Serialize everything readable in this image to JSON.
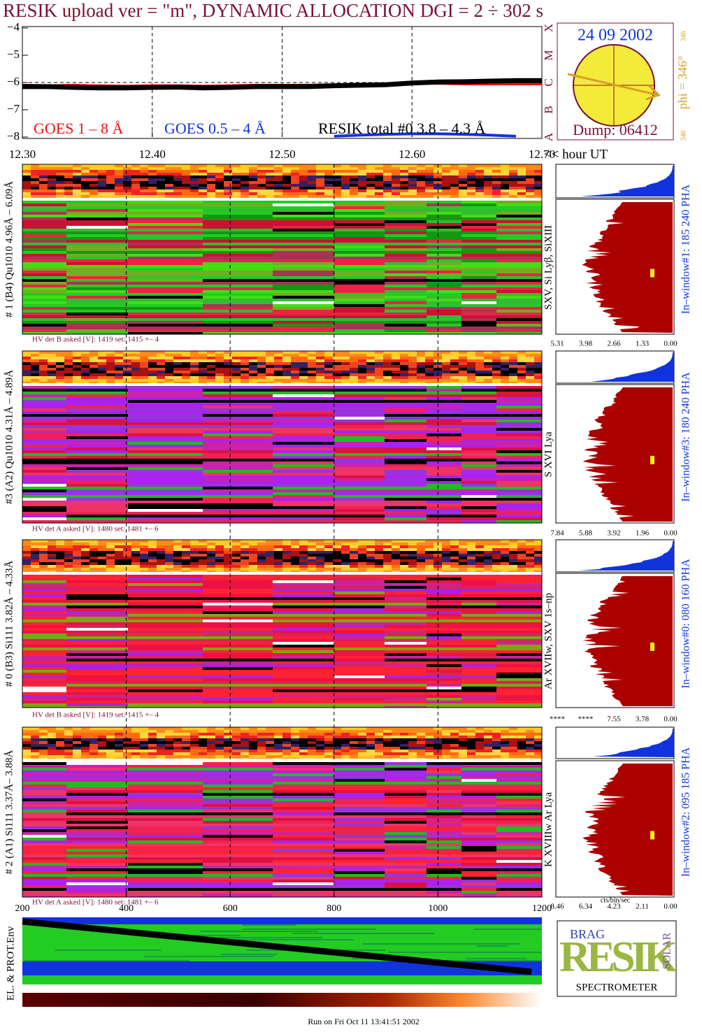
{
  "chart_data": {
    "type": "line",
    "title": "RESIK upload ver = \"m\", DYNAMIC ALLOCATION  DGI =   2 ÷ 302 s",
    "x_label": "<< hour UT",
    "x": [
      12.3,
      12.32,
      12.34,
      12.36,
      12.38,
      12.4,
      12.42,
      12.44,
      12.46,
      12.48,
      12.5,
      12.52,
      12.54,
      12.56,
      12.58,
      12.6,
      12.62,
      12.64,
      12.66,
      12.68,
      12.7
    ],
    "series": [
      {
        "name": "GOES 1 – 8 Å",
        "color": "#ee1111",
        "values": [
          -6.1,
          -6.12,
          -6.1,
          -6.12,
          -6.13,
          -6.12,
          -6.12,
          -6.13,
          -6.12,
          -6.1,
          -6.1,
          -6.1,
          -6.08,
          -6.07,
          -6.05,
          -6.03,
          -6.03,
          -6.05,
          -6.05,
          -6.05,
          -6.05
        ]
      },
      {
        "name": "GOES 0.5 – 4 Å",
        "color": "#1133dd",
        "values": [
          null,
          null,
          null,
          null,
          null,
          null,
          null,
          null,
          null,
          null,
          null,
          null,
          -7.97,
          -7.93,
          -7.9,
          -7.88,
          -7.88,
          -7.9,
          -7.93,
          -7.97,
          null
        ]
      },
      {
        "name": "RESIK total #0  3.8 – 4.3 Å",
        "color": "#000000",
        "values": [
          -6.15,
          -6.15,
          -6.18,
          -6.2,
          -6.2,
          -6.18,
          -6.17,
          -6.2,
          -6.18,
          -6.15,
          -6.15,
          -6.15,
          -6.12,
          -6.1,
          -6.08,
          -6.02,
          -5.98,
          -5.97,
          -5.95,
          -5.93,
          -5.93
        ]
      }
    ],
    "xlim": [
      12.3,
      12.7
    ],
    "xticks": [
      {
        "value": 12.3,
        "label": "12.30"
      },
      {
        "value": 12.4,
        "label": "12.40"
      },
      {
        "value": 12.5,
        "label": "12.50"
      },
      {
        "value": 12.6,
        "label": "12.60"
      },
      {
        "value": 12.7,
        "label": "12.70"
      }
    ],
    "ylim": [
      -8,
      -4
    ],
    "yticks": [
      {
        "value": -8,
        "label": "−8"
      },
      {
        "value": -7,
        "label": "−7"
      },
      {
        "value": -6,
        "label": "−6"
      },
      {
        "value": -5,
        "label": "−5"
      },
      {
        "value": -4,
        "label": "−4"
      }
    ],
    "goes_classes": [
      "A",
      "B",
      "C",
      "M",
      "X"
    ],
    "grid": true
  },
  "sun": {
    "date": "24 09 2002",
    "dump": "Dump: 06412",
    "phi": "phi = 346°",
    "phi_small": "346",
    "corner": "346"
  },
  "channels": {
    "xlim": [
      200,
      1200
    ],
    "xticks": [
      200,
      400,
      600,
      800,
      1000,
      1200
    ]
  },
  "panels": [
    {
      "label": "# 1 (B4) Qu1010 4.96Å – 6.09Å",
      "lines": "SXV, Si Lyβ, SiXIII",
      "window": "In–window#1:  185 240 PHA",
      "hv": "HV det B asked [V]:  1419 set:  1415 +–    4",
      "hist_ticks": [
        "5.31",
        "3.98",
        "2.66",
        "1.33",
        "0.00"
      ]
    },
    {
      "label": "#3 (A2) Qu1010  4.31Å – 4.89Å",
      "lines": "S XVI Lya",
      "window": "In–window#3:  180 240 PHA",
      "hv": "HV det A asked [V]:  1480 set:  1481 +–    6",
      "hist_ticks": [
        "7.84",
        "5.88",
        "3.92",
        "1.96",
        "0.00"
      ]
    },
    {
      "label": "# 0 (B3) Si111  3.82Å – 4.33Å",
      "lines": "Ar XVIIw, SXV 1s–np",
      "window": "In–window#0:  080 160 PHA",
      "hv": "HV det B asked [V]:  1419 set:  1415 +–    4",
      "hist_ticks": [
        "****",
        "****",
        "7.55",
        "3.78",
        "0.00"
      ]
    },
    {
      "label": "# 2 (A1) Si111  3.37Å– 3.88Å",
      "lines": "K XVIIIw  Ar Lya",
      "window": "In–window#2:  095 185 PHA",
      "hv": "HV det A asked [V]:  1480 set:  1481 +–    6",
      "hist_ticks": [
        "8.46",
        "6.34",
        "4.23",
        "2.11",
        "0.00"
      ]
    }
  ],
  "hist_unit": "cts/bin/sec",
  "env_label": "EL. & PROT.Env",
  "logo": {
    "top": "BRAG",
    "word": "RESIK",
    "side": "SOLAR",
    "caption": "SPECTROMETER"
  },
  "footer": "Run on Fri Oct 11 13:41:51 2002"
}
